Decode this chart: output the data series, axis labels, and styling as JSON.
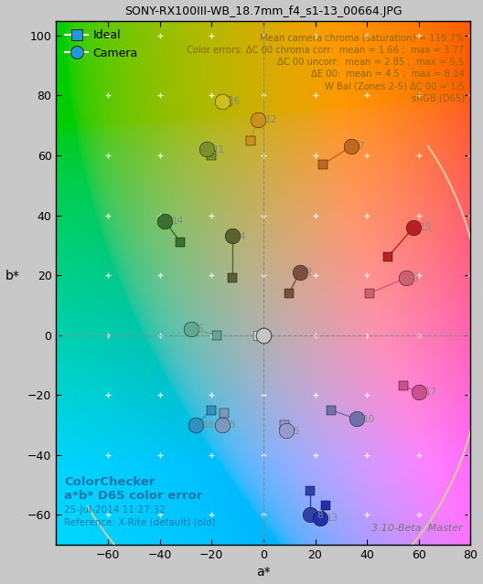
{
  "title": "SONY-RX100III-WB_18.7mm_f4_s1-13_00664.JPG",
  "xlabel": "a*",
  "ylabel": "b*",
  "xlim": [
    -80,
    80
  ],
  "ylim": [
    -70,
    105
  ],
  "xticks": [
    -60,
    -40,
    -20,
    0,
    20,
    40,
    60,
    80
  ],
  "yticks": [
    -60,
    -40,
    -20,
    0,
    20,
    40,
    60,
    80,
    100
  ],
  "annotation_lines": [
    "Mean camera chroma (saturation) = 119.7%",
    "Color errors: ΔC 00 chroma corr:  mean = 1.66 ;  max = 3.77",
    "ΔC 00 uncorr:  mean = 2.85 ;  max = 5.5",
    "ΔE 00:  mean = 4.5 ;  max = 8.14",
    "W Bal (Zones 2-5) ΔC 00 = 1.5",
    "sRGB (D65)"
  ],
  "bottom_left_lines": [
    "ColorChecker",
    "a*b* D65 color error",
    "25-Jul-2014 11:27:32",
    "Reference: X-Rite (default) (old)"
  ],
  "bottom_right": "3.10-Beta  Master",
  "patches": [
    {
      "id": 2,
      "ideal_a": 10,
      "ideal_b": 14,
      "camera_a": 14,
      "camera_b": 21,
      "color": "#7B5040"
    },
    {
      "id": 3,
      "ideal_a": -15,
      "ideal_b": -26,
      "camera_a": -16,
      "camera_b": -30,
      "color": "#7B99BB"
    },
    {
      "id": 4,
      "ideal_a": -12,
      "ideal_b": 19,
      "camera_a": -12,
      "camera_b": 33,
      "color": "#5A6030"
    },
    {
      "id": 5,
      "ideal_a": 8,
      "ideal_b": -30,
      "camera_a": 9,
      "camera_b": -32,
      "color": "#9999CC"
    },
    {
      "id": 6,
      "ideal_a": -18,
      "ideal_b": 0,
      "camera_a": -28,
      "camera_b": 2,
      "color": "#60A890"
    },
    {
      "id": 7,
      "ideal_a": 23,
      "ideal_b": 57,
      "camera_a": 34,
      "camera_b": 63,
      "color": "#C06820"
    },
    {
      "id": 8,
      "ideal_a": 18,
      "ideal_b": -52,
      "camera_a": 18,
      "camera_b": -60,
      "color": "#3040AA"
    },
    {
      "id": 9,
      "ideal_a": 41,
      "ideal_b": 14,
      "camera_a": 55,
      "camera_b": 19,
      "color": "#CC6070"
    },
    {
      "id": 10,
      "ideal_a": 26,
      "ideal_b": -25,
      "camera_a": 36,
      "camera_b": -28,
      "color": "#7070AA"
    },
    {
      "id": 11,
      "ideal_a": -20,
      "ideal_b": 60,
      "camera_a": -22,
      "camera_b": 62,
      "color": "#7A9030"
    },
    {
      "id": 12,
      "ideal_a": -5,
      "ideal_b": 65,
      "camera_a": -2,
      "camera_b": 72,
      "color": "#CC9020"
    },
    {
      "id": 13,
      "ideal_a": 24,
      "ideal_b": -57,
      "camera_a": 22,
      "camera_b": -61,
      "color": "#2030AA"
    },
    {
      "id": 14,
      "ideal_a": -32,
      "ideal_b": 31,
      "camera_a": -38,
      "camera_b": 38,
      "color": "#3A7030"
    },
    {
      "id": 15,
      "ideal_a": 48,
      "ideal_b": 26,
      "camera_a": 58,
      "camera_b": 36,
      "color": "#BB2020"
    },
    {
      "id": 16,
      "ideal_a": -14,
      "ideal_b": 78,
      "camera_a": -16,
      "camera_b": 78,
      "color": "#CCC020"
    },
    {
      "id": 17,
      "ideal_a": 54,
      "ideal_b": -17,
      "camera_a": 60,
      "camera_b": -19,
      "color": "#CC5090"
    },
    {
      "id": 18,
      "ideal_a": -20,
      "ideal_b": -25,
      "camera_a": -26,
      "camera_b": -30,
      "color": "#3090C0"
    },
    {
      "id": 19,
      "ideal_a": -2,
      "ideal_b": 0,
      "camera_a": 0,
      "camera_b": 0,
      "color": "#C0C0C0"
    }
  ],
  "background_color": "#C8C8C8",
  "text_color_annotation": "#886600",
  "text_color_bottom": "#2277AA",
  "legend_color": "#2299DD"
}
